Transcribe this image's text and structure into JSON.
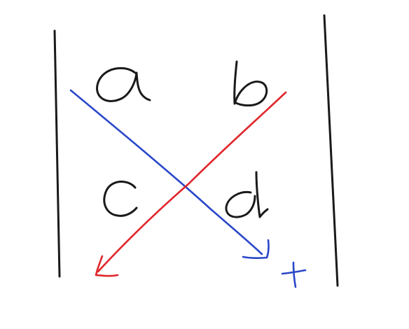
{
  "determinant": {
    "entries": {
      "a": "a",
      "b": "b",
      "c": "c",
      "d": "d"
    },
    "sign_mark": "+"
  },
  "colors": {
    "ink": "#1a1a1a",
    "blue_diagonal": "#2a47c9",
    "red_diagonal": "#e0262b"
  },
  "icons": {
    "left_bar": "vertical-bar",
    "right_bar": "vertical-bar",
    "main_diagonal": "arrow-down-right",
    "anti_diagonal": "arrow-down-left"
  }
}
